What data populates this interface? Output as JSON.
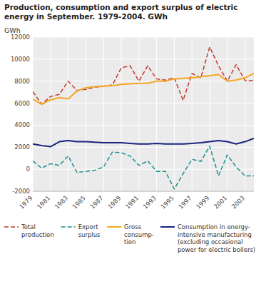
{
  "chart_data": {
    "type": "line",
    "title": "Production, consumption and export surplus of electric\nenergy in September. 1979-2004. GWh",
    "y_label": "GWh",
    "x": [
      1979,
      1980,
      1981,
      1982,
      1983,
      1984,
      1985,
      1986,
      1987,
      1988,
      1989,
      1990,
      1991,
      1992,
      1993,
      1994,
      1995,
      1996,
      1997,
      1998,
      1999,
      2000,
      2001,
      2002,
      2003,
      2004
    ],
    "series": [
      {
        "name": "Total\nproduction",
        "color": "#c0392b",
        "line_style": "dashed",
        "values": [
          7050,
          5900,
          6600,
          6800,
          8000,
          7150,
          7250,
          7450,
          7550,
          7650,
          9200,
          9400,
          8000,
          9400,
          8200,
          8100,
          8300,
          6250,
          8700,
          8300,
          11100,
          9400,
          8000,
          9500,
          8050,
          8050
        ]
      },
      {
        "name": "Export\nsurplus",
        "color": "#1a9090",
        "line_style": "dashed",
        "values": [
          750,
          100,
          500,
          350,
          1200,
          -300,
          -200,
          -100,
          200,
          1550,
          1500,
          1200,
          350,
          750,
          -200,
          -200,
          -1800,
          -400,
          900,
          700,
          2100,
          -600,
          1300,
          200,
          -600,
          -600
        ]
      },
      {
        "name": "Gross\nconsump-\ntion",
        "color": "#f5a623",
        "line_style": "solid",
        "values": [
          6350,
          5900,
          6300,
          6500,
          6400,
          7100,
          7400,
          7500,
          7550,
          7600,
          7700,
          7750,
          7800,
          7800,
          8000,
          8000,
          8200,
          8250,
          8300,
          8400,
          8500,
          8600,
          8000,
          8100,
          8300,
          8700
        ]
      },
      {
        "name": "Consumption in energy-\nintensive manufacturing\n(excluding occasional\npower for electric boilers)",
        "color": "#1a237e",
        "line_style": "solid",
        "values": [
          2300,
          2150,
          2050,
          2500,
          2600,
          2500,
          2500,
          2450,
          2400,
          2400,
          2400,
          2350,
          2300,
          2300,
          2350,
          2300,
          2300,
          2300,
          2350,
          2400,
          2500,
          2600,
          2500,
          2300,
          2500,
          2800
        ]
      }
    ],
    "xlim": [
      1979,
      2004
    ],
    "xticks": [
      1979,
      1981,
      1983,
      1985,
      1987,
      1989,
      1991,
      1993,
      1995,
      1997,
      1999,
      2001,
      2003
    ],
    "ylim": [
      -2000,
      12000
    ],
    "yticks": [
      -2000,
      0,
      2000,
      4000,
      6000,
      8000,
      10000,
      12000
    ],
    "grid": true,
    "legend": "bottom"
  }
}
